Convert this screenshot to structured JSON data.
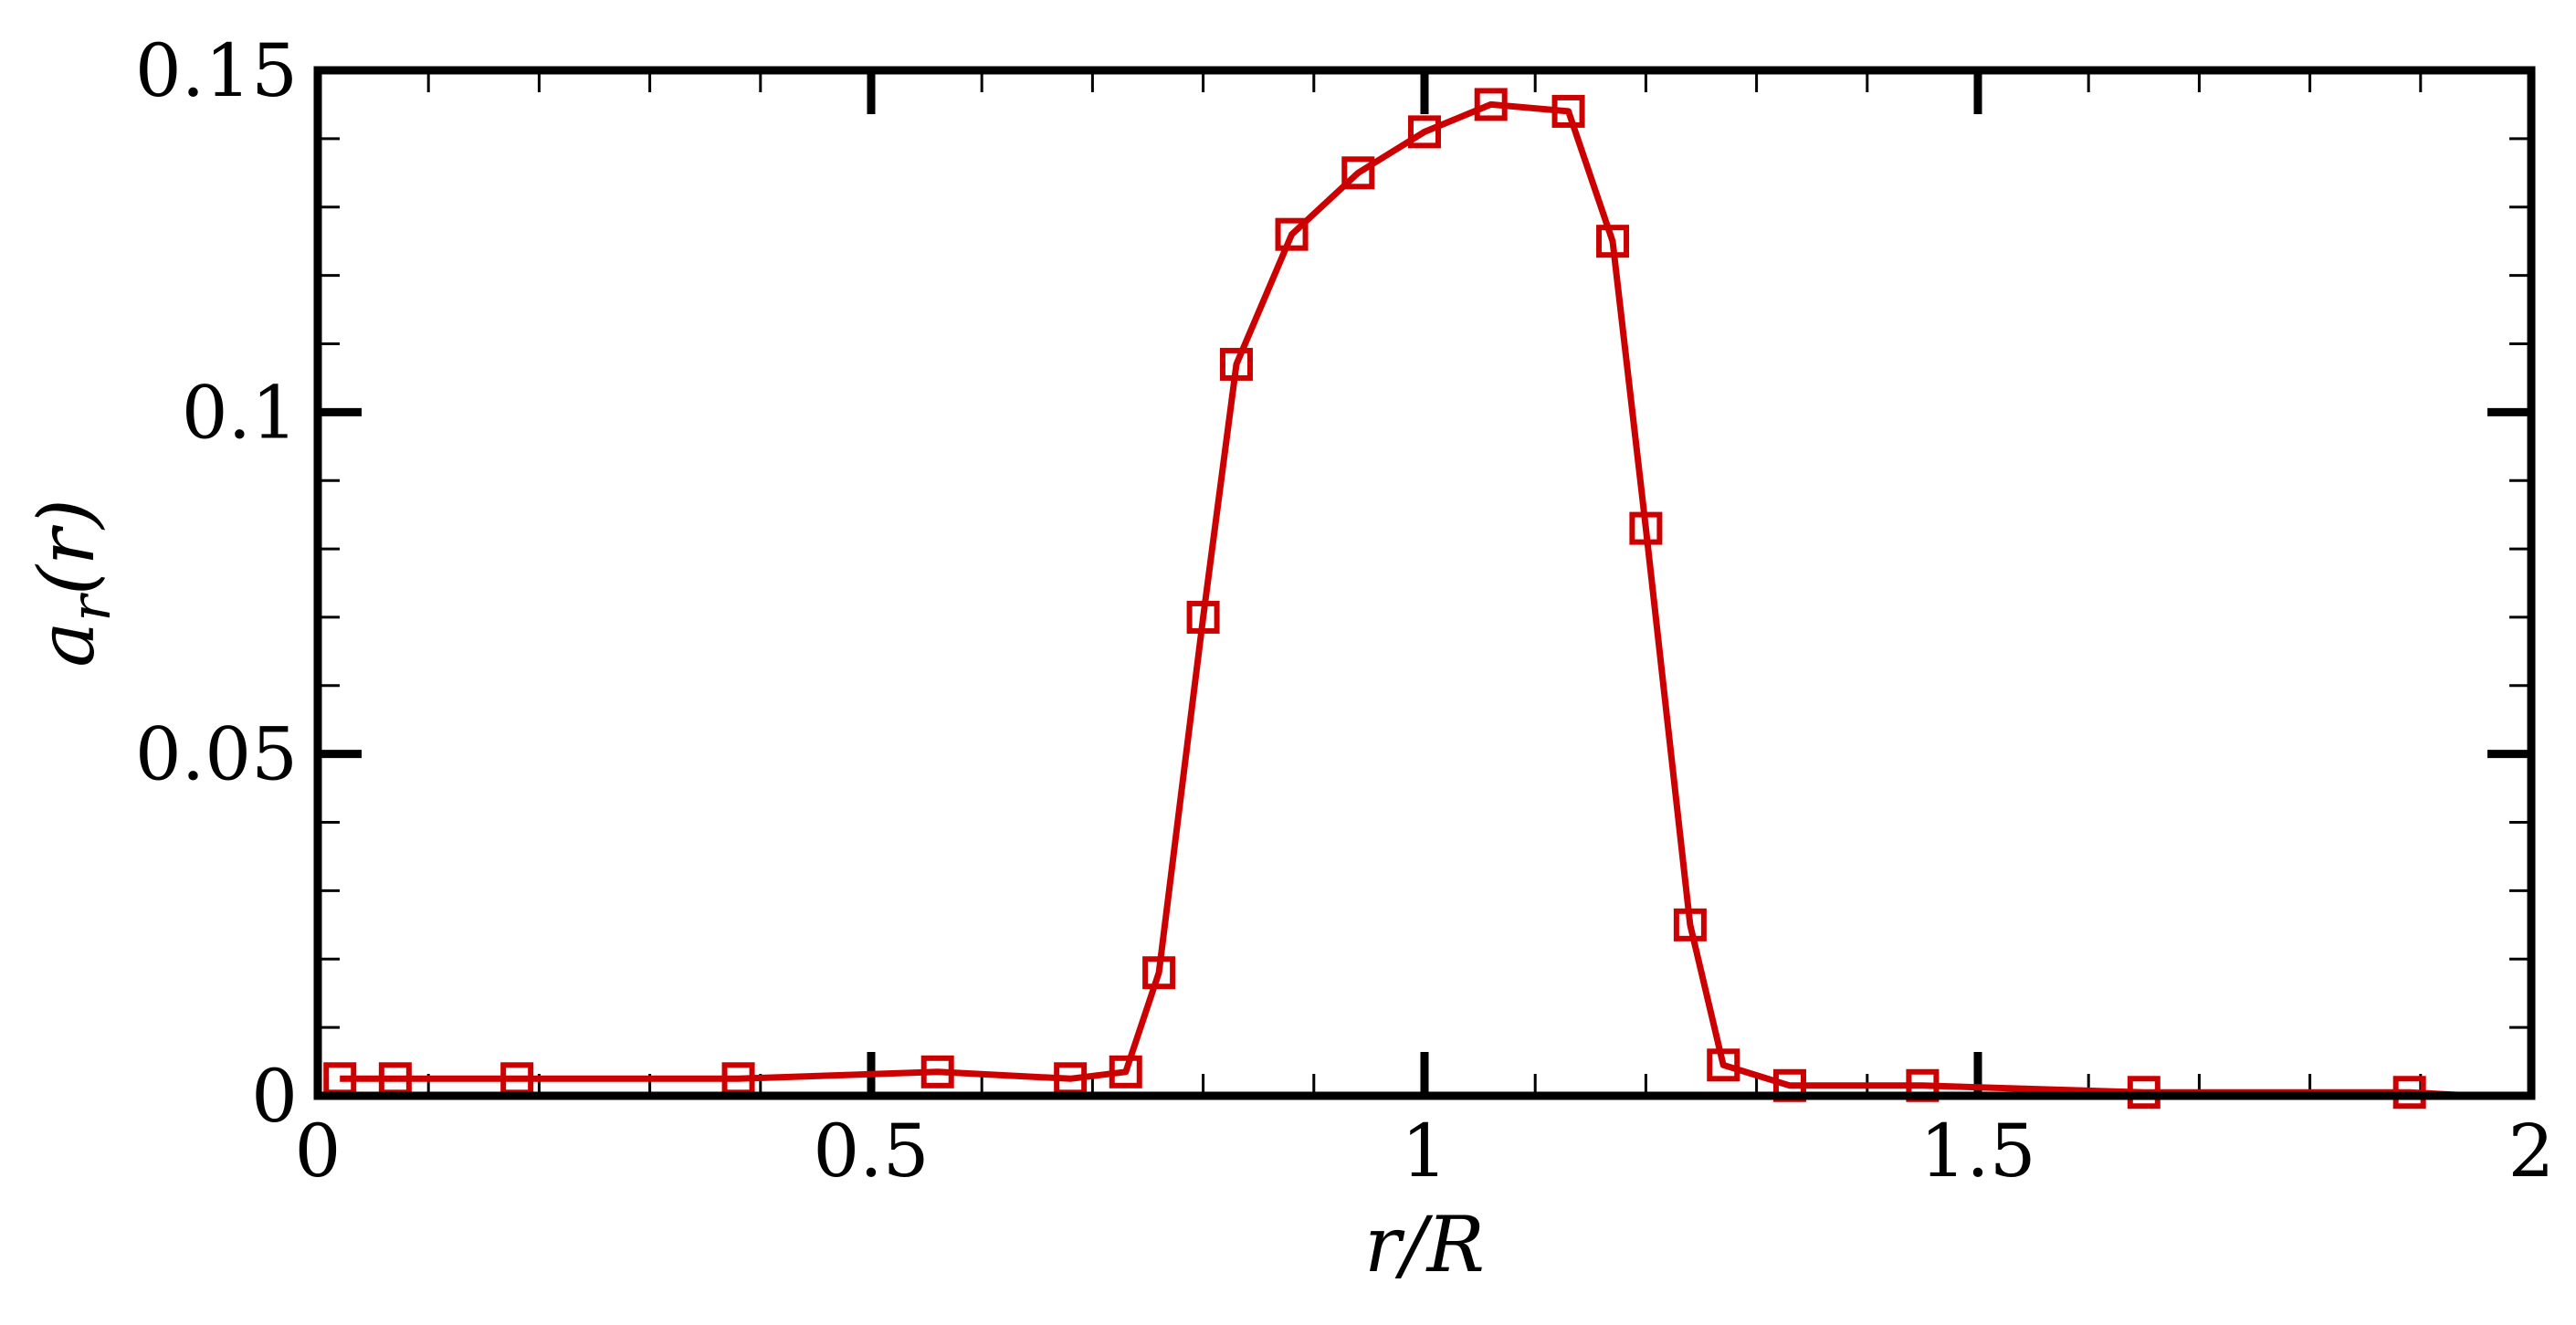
{
  "chart_data": {
    "type": "line",
    "xlabel": "r/R",
    "ylabel": {
      "base": "a",
      "sub": "r",
      "rest": "(r)"
    },
    "xlim": [
      0,
      2
    ],
    "ylim": [
      0,
      0.15
    ],
    "x_major_ticks": [
      0,
      0.5,
      1,
      1.5,
      2
    ],
    "x_tick_labels": [
      "0",
      "0.5",
      "1",
      "1.5",
      "2"
    ],
    "x_minor_step": 0.1,
    "y_major_ticks": [
      0,
      0.05,
      0.1,
      0.15
    ],
    "y_tick_labels": [
      "0",
      "0.05",
      "0.1",
      "0.15"
    ],
    "y_minor_step": 0.01,
    "grid": false,
    "legend": "none",
    "series": [
      {
        "color": "#cc0000",
        "marker": "open-square",
        "x": [
          0.02,
          0.07,
          0.18,
          0.38,
          0.56,
          0.68,
          0.73,
          0.76,
          0.8,
          0.83,
          0.88,
          0.94,
          1.0,
          1.06,
          1.13,
          1.17,
          1.2,
          1.24,
          1.27,
          1.33,
          1.45,
          1.65,
          1.89,
          1.95
        ],
        "y": [
          0.0025,
          0.0025,
          0.0025,
          0.0025,
          0.0035,
          0.0025,
          0.0035,
          0.018,
          0.07,
          0.107,
          0.126,
          0.135,
          0.141,
          0.145,
          0.144,
          0.125,
          0.083,
          0.025,
          0.0045,
          0.0015,
          0.0015,
          0.0005,
          0.0005,
          0.0
        ],
        "marker_shown": [
          true,
          true,
          true,
          true,
          true,
          true,
          true,
          true,
          true,
          true,
          true,
          true,
          true,
          true,
          true,
          true,
          true,
          true,
          true,
          true,
          true,
          true,
          true,
          false
        ]
      }
    ]
  }
}
